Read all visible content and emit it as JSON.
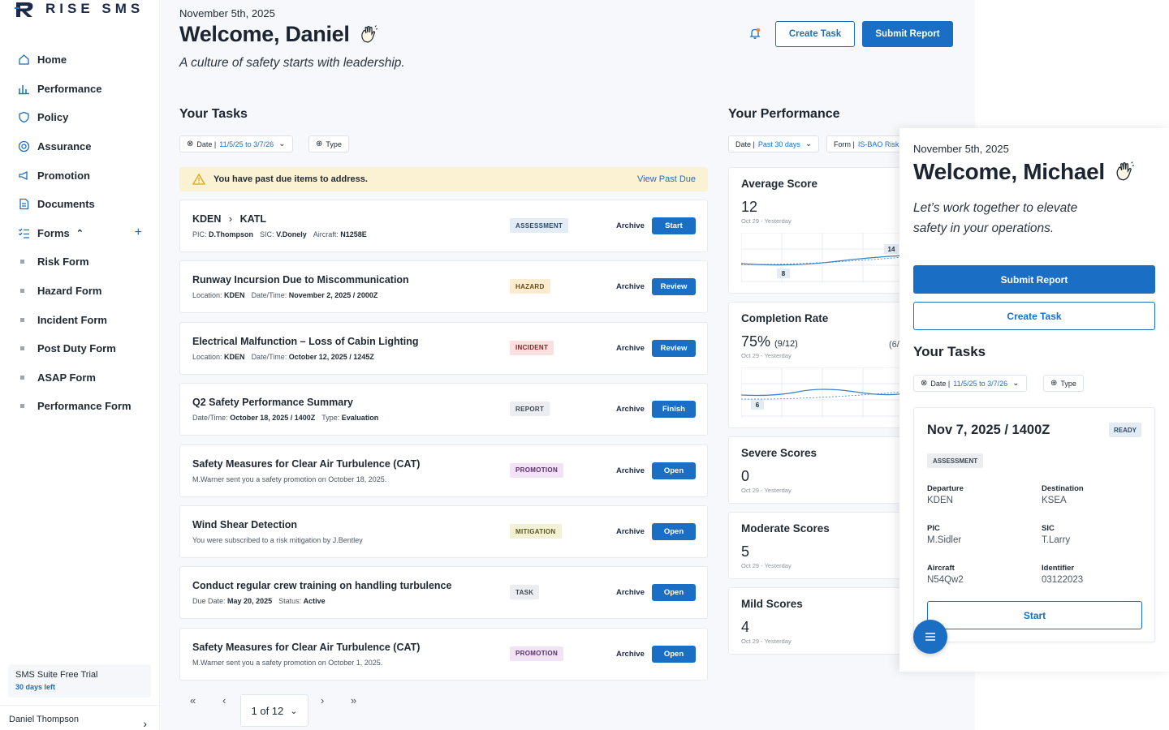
{
  "brand": {
    "name": "RISE SMS"
  },
  "sidebar": {
    "items": [
      {
        "label": "Home",
        "icon": "home-icon"
      },
      {
        "label": "Performance",
        "icon": "bar-chart-icon"
      },
      {
        "label": "Policy",
        "icon": "shield-icon"
      },
      {
        "label": "Assurance",
        "icon": "target-icon"
      },
      {
        "label": "Promotion",
        "icon": "megaphone-icon"
      },
      {
        "label": "Documents",
        "icon": "document-icon"
      },
      {
        "label": "Forms",
        "icon": "checklist-icon"
      }
    ],
    "forms": [
      "Risk Form",
      "Hazard Form",
      "Incident Form",
      "Post Duty Form",
      "ASAP Form",
      "Performance Form"
    ],
    "trial_title": "SMS Suite Free Trial",
    "trial_sub": "30 days left",
    "user_name": "Daniel Thompson"
  },
  "header": {
    "date": "November 5th, 2025",
    "welcome": "Welcome, Daniel",
    "tagline": "A culture of safety starts with leadership.",
    "create_task": "Create Task",
    "submit_report": "Submit Report"
  },
  "tasks": {
    "title": "Your Tasks",
    "filter_date_label": "Date |",
    "filter_date_value": "11/5/25 to 3/7/26",
    "filter_type": "Type",
    "alert": "You have past due items to address.",
    "alert_link": "View Past Due",
    "archive_label": "Archive",
    "items": [
      {
        "title_from": "KDEN",
        "title_to": "KATL",
        "sub": [
          [
            "PIC:",
            "D.Thompson"
          ],
          [
            "SIC:",
            "V.Donely"
          ],
          [
            "Aircraft:",
            "N1258E"
          ]
        ],
        "badge": "ASSESSMENT",
        "badge_bg": "#e3ecf5",
        "badge_fg": "#2c4a6b",
        "action": "Start"
      },
      {
        "title": "Runway Incursion Due to Miscommunication",
        "sub": [
          [
            "Location:",
            "KDEN"
          ],
          [
            "Date/Time:",
            "November 2, 2025 / 2000Z"
          ]
        ],
        "badge": "HAZARD",
        "badge_bg": "#fbecd0",
        "badge_fg": "#6b4a16",
        "action": "Review"
      },
      {
        "title": "Electrical Malfunction – Loss of Cabin Lighting",
        "sub": [
          [
            "Location:",
            "KDEN"
          ],
          [
            "Date/Time:",
            "October 12, 2025 / 1245Z"
          ]
        ],
        "badge": "INCIDENT",
        "badge_bg": "#fbe0e0",
        "badge_fg": "#7a2a2a",
        "action": "Review"
      },
      {
        "title": "Q2 Safety Performance Summary",
        "sub": [
          [
            "Date/Time:",
            "October 18, 2025 / 1400Z"
          ],
          [
            "Type:",
            "Evaluation"
          ]
        ],
        "badge": "REPORT",
        "badge_bg": "#ebedf0",
        "badge_fg": "#3e4751",
        "action": "Finish"
      },
      {
        "title": "Safety Measures for Clear Air Turbulence (CAT)",
        "sub_text": "M.Warner sent you a safety promotion on October 18, 2025.",
        "badge": "PROMOTION",
        "badge_bg": "#f1e3f5",
        "badge_fg": "#5e2c6b",
        "action": "Open"
      },
      {
        "title": "Wind Shear Detection",
        "sub_text": "You were subscribed to a risk mitigation by J.Bentley",
        "badge": "MITIGATION",
        "badge_bg": "#f3f1d4",
        "badge_fg": "#5a5420",
        "action": "Open"
      },
      {
        "title": "Conduct regular crew training on handling turbulence",
        "sub": [
          [
            "Due Date:",
            "May 20, 2025"
          ],
          [
            "Status:",
            "Active"
          ]
        ],
        "badge": "TASK",
        "badge_bg": "#ebedf0",
        "badge_fg": "#3e4751",
        "action": "Open"
      },
      {
        "title": "Safety Measures for Clear Air Turbulence (CAT)",
        "sub_text": "M.Warner sent you a safety promotion on October 1, 2025.",
        "badge": "PROMOTION",
        "badge_bg": "#f1e3f5",
        "badge_fg": "#5e2c6b",
        "action": "Open"
      }
    ],
    "pager": {
      "first": "«",
      "prev": "‹",
      "page": "1 of 12",
      "next": "›",
      "last": "»"
    }
  },
  "performance": {
    "title": "Your Performance",
    "filter_date_label": "Date |",
    "filter_date_value": "Past 30 days",
    "filter_form_label": "Form |",
    "filter_form_value": "IS-BAO Risk",
    "cards": [
      {
        "title": "Average Score",
        "value": "12",
        "range": "Oct 29 - Yesterday",
        "chart": {
          "start": 8,
          "end": 14
        }
      },
      {
        "title": "Completion Rate",
        "value": "75%",
        "value_extra": "(9/12)",
        "right_extra": "(6/",
        "range": "Oct 29 - Yesterday",
        "chart": {
          "start": 6
        }
      },
      {
        "title": "Severe Scores",
        "value": "0",
        "range": "Oct 29 - Yesterday"
      },
      {
        "title": "Moderate Scores",
        "value": "5",
        "range": "Oct 29 - Yesterday"
      },
      {
        "title": "Mild Scores",
        "value": "4",
        "range": "Oct 29 - Yesterday"
      }
    ]
  },
  "overlay": {
    "date": "November 5th, 2025",
    "welcome": "Welcome, Michael",
    "tagline": "Let’s work together to elevate safety in your operations.",
    "submit_report": "Submit Report",
    "create_task": "Create Task",
    "tasks_title": "Your Tasks",
    "filter_date_label": "Date |",
    "filter_date_value": "11/5/25 to 3/7/26",
    "filter_type": "Type",
    "card": {
      "title": "Nov 7, 2025 / 1400Z",
      "status": "READY",
      "badge": "ASSESSMENT",
      "fields": [
        {
          "label": "Departure",
          "value": "KDEN"
        },
        {
          "label": "Destination",
          "value": "KSEA"
        },
        {
          "label": "PIC",
          "value": "M.Sidler"
        },
        {
          "label": "SIC",
          "value": "T.Larry"
        },
        {
          "label": "Aircraft",
          "value": "N54Qw2"
        },
        {
          "label": "Identifier",
          "value": "03122023"
        }
      ],
      "start": "Start"
    }
  },
  "colors": {
    "accent": "#1a6fc4",
    "alert_bg": "#fbf1d3",
    "page_bg": "#f6f8fb"
  }
}
